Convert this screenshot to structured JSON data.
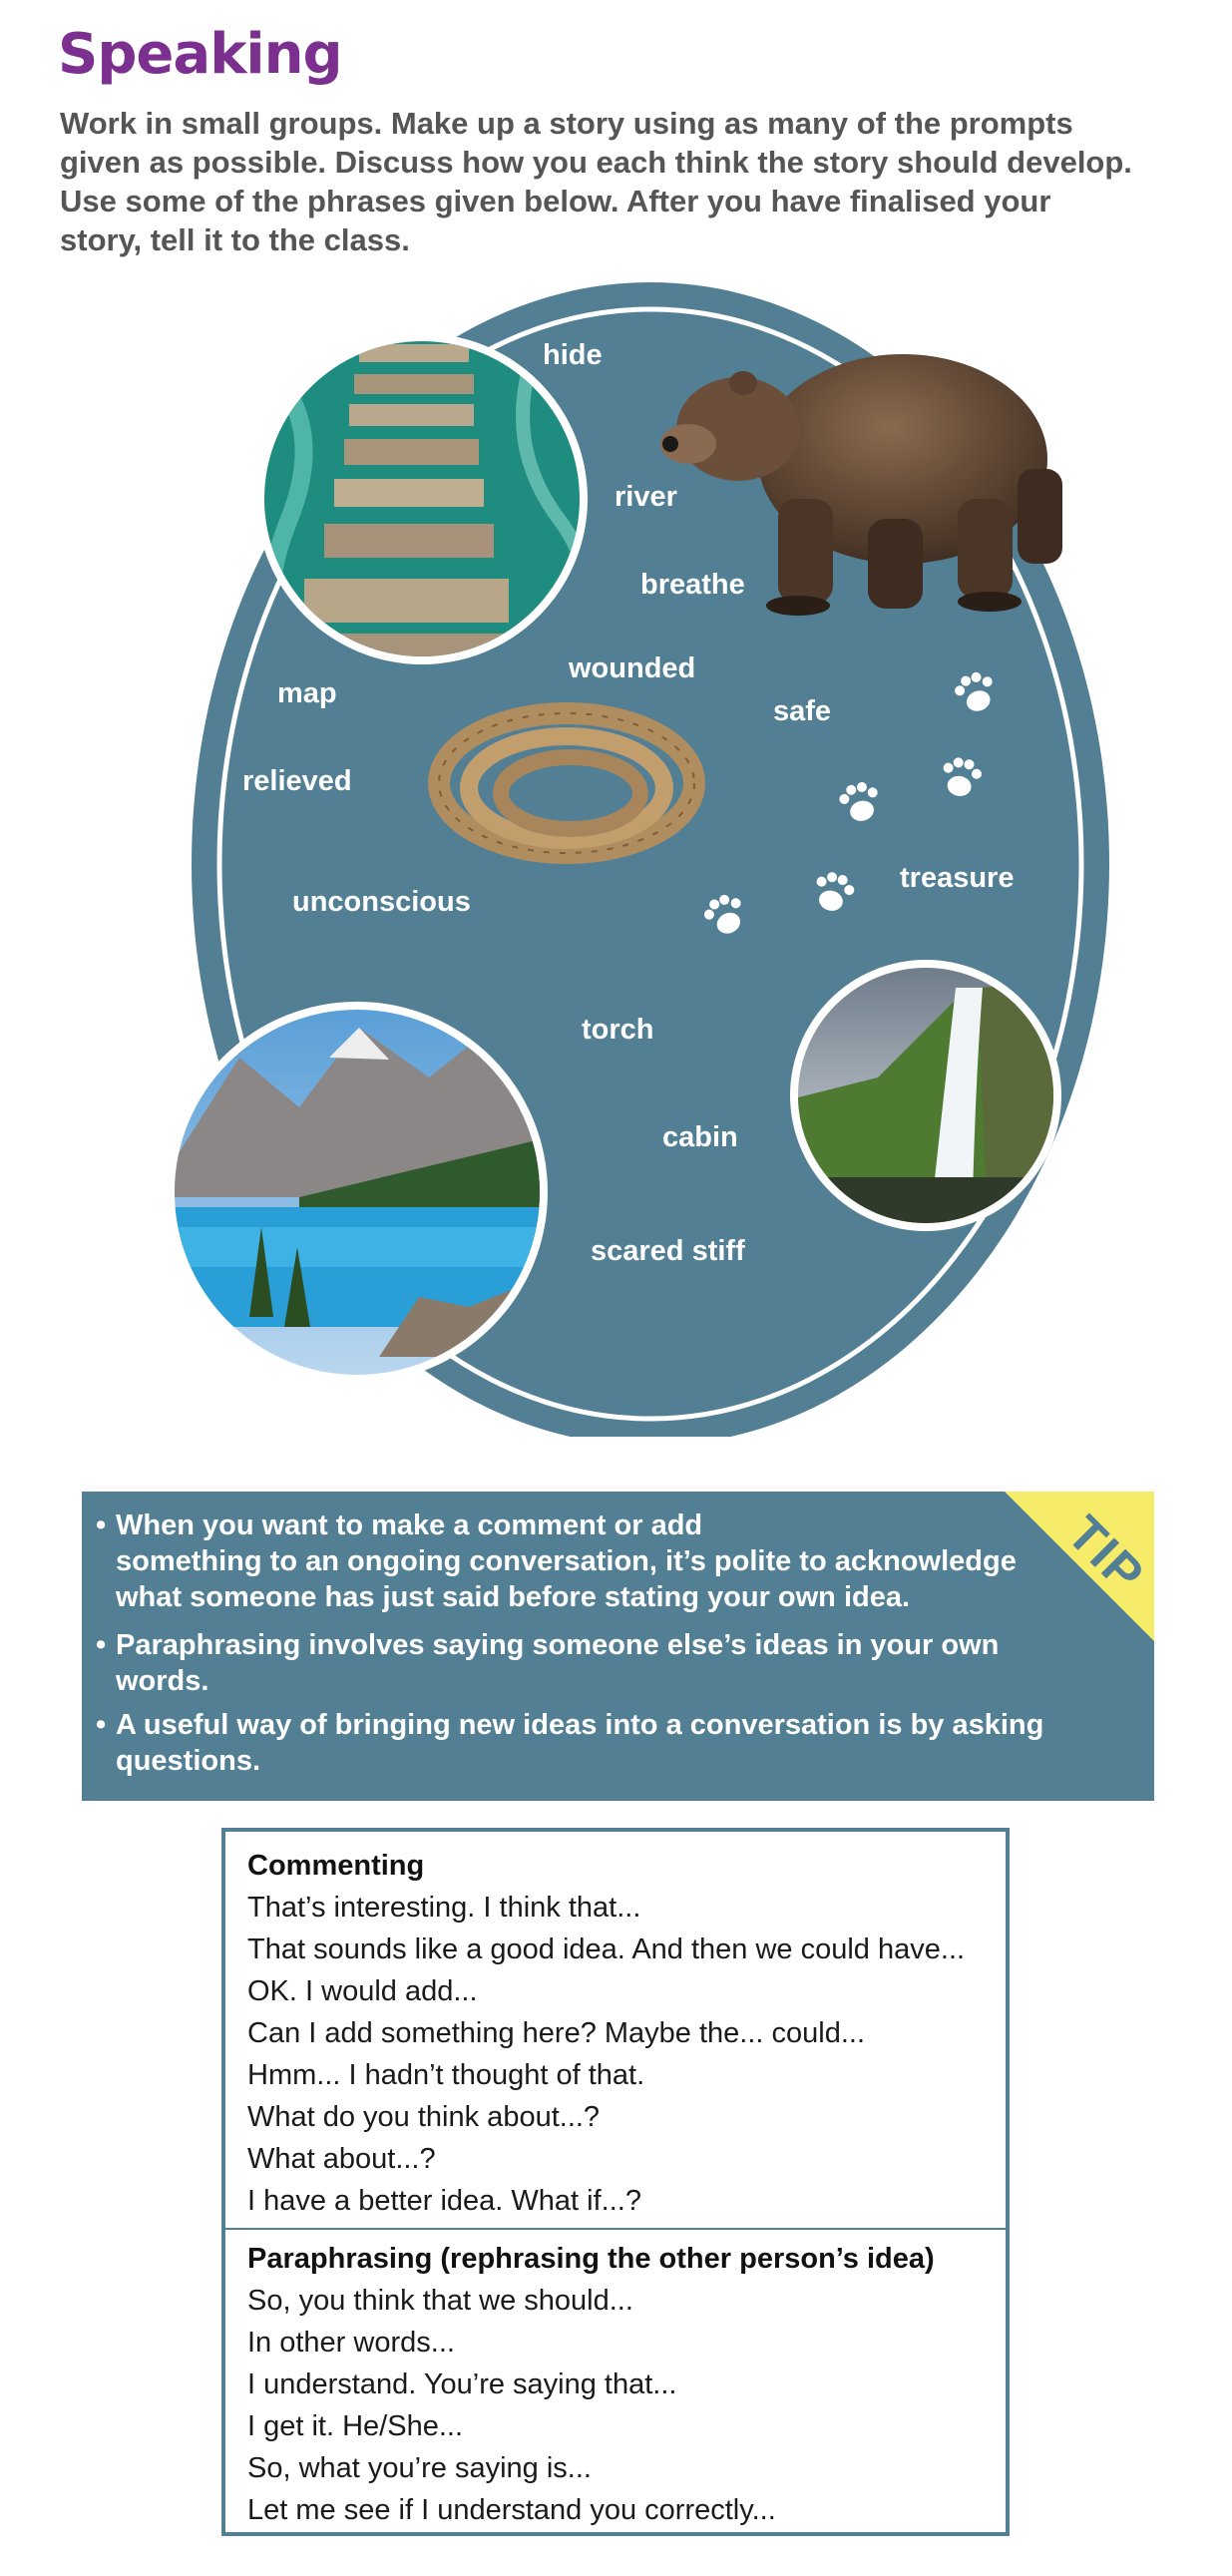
{
  "heading": "Speaking",
  "instructions": [
    "Work in small groups. Make up a story using as many of the prompts",
    "given as possible. Discuss how you each think the story should develop.",
    "Use some of the phrases given below. After you have finalised your",
    "story, tell it to the class."
  ],
  "prompts": [
    "hide",
    "river",
    "breathe",
    "wounded",
    "map",
    "safe",
    "relieved",
    "treasure",
    "unconscious",
    "torch",
    "cabin",
    "scared stiff"
  ],
  "images": {
    "bridge": "bridge-photo",
    "bear": "bear-photo",
    "rope": "rope-photo",
    "lake": "mountain-lake-photo",
    "waterfall": "waterfall-photo",
    "paw": "paw-print-icon"
  },
  "tip": {
    "label": "TIP",
    "items": [
      [
        "When you want to make a comment or add",
        "something to an ongoing conversation, it’s polite to acknowledge",
        "what someone has just said before stating your own idea."
      ],
      [
        "Paraphrasing involves saying someone else’s ideas in your own",
        "words."
      ],
      [
        "A useful way of bringing new ideas into a conversation is by asking",
        "questions."
      ]
    ]
  },
  "phrases": {
    "commenting_title": "Commenting",
    "commenting": [
      "That’s interesting. I think that...",
      "That sounds like a good idea. And then we could have...",
      "OK. I would add...",
      "Can I add something here? Maybe the... could...",
      "Hmm... I hadn’t thought of that.",
      "What do you think about...?",
      "What about...?",
      "I have a better idea. What if...?"
    ],
    "paraphrasing_title": "Paraphrasing (rephrasing the other person’s idea)",
    "paraphrasing": [
      "So, you think that we should...",
      "In other words...",
      "I understand. You’re saying that...",
      "I get it. He/She...",
      "So, what you’re saying is...",
      "Let me see if I understand you correctly..."
    ]
  },
  "colors": {
    "heading": "#7b2f8e",
    "panel": "#537f95",
    "tip_corner": "#f6ec6a"
  }
}
